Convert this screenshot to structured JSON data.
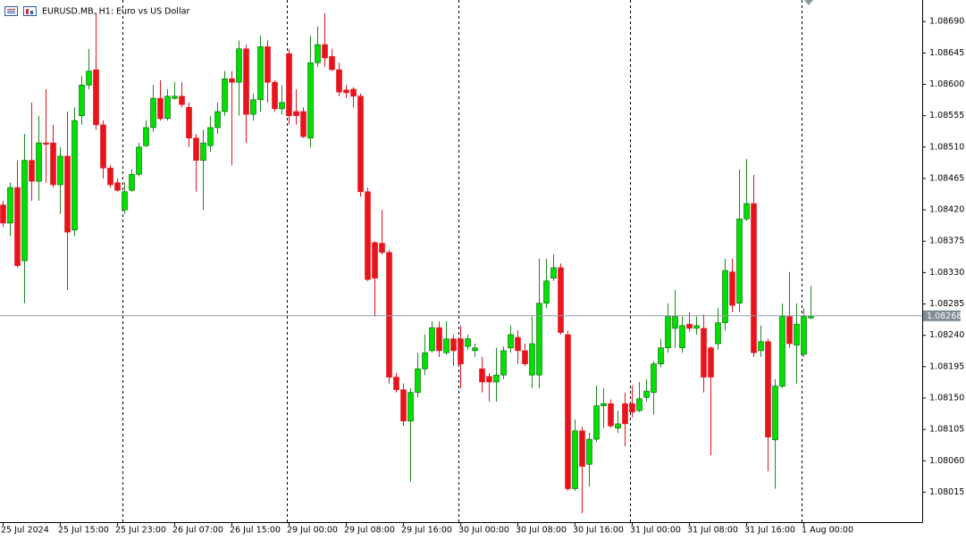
{
  "chart_data": {
    "type": "candlestick",
    "title": "EURUSD.MB, H1:  Euro vs US Dollar",
    "up_color": "#00e000",
    "down_color": "#e8131b",
    "current_price": 1.08268,
    "categories": [
      "25 Jul 2024",
      null,
      null,
      null,
      null,
      null,
      null,
      null,
      "25 Jul 15:00",
      null,
      null,
      null,
      null,
      null,
      null,
      null,
      "25 Jul 23:00",
      null,
      null,
      null,
      null,
      null,
      null,
      null,
      "26 Jul 07:00",
      null,
      null,
      null,
      null,
      null,
      null,
      null,
      "26 Jul 15:00",
      null,
      null,
      null,
      null,
      null,
      null,
      null,
      "29 Jul 00:00",
      null,
      null,
      null,
      null,
      null,
      null,
      null,
      "29 Jul 08:00",
      null,
      null,
      null,
      null,
      null,
      null,
      null,
      "29 Jul 16:00",
      null,
      null,
      null,
      null,
      null,
      null,
      null,
      "30 Jul 00:00",
      null,
      null,
      null,
      null,
      null,
      null,
      null,
      "30 Jul 08:00",
      null,
      null,
      null,
      null,
      null,
      null,
      null,
      "30 Jul 16:00",
      null,
      null,
      null,
      null,
      null,
      null,
      null,
      "31 Jul 00:00",
      null,
      null,
      null,
      null,
      null,
      null,
      null,
      "31 Jul 08:00",
      null,
      null,
      null,
      null,
      null,
      null,
      null,
      "31 Jul 16:00",
      null,
      null,
      null,
      null,
      null,
      null,
      null,
      "1 Aug 00:00",
      null
    ],
    "open": [
      1.08427,
      1.08401,
      1.08452,
      1.08347,
      1.08491,
      1.08461,
      1.08516,
      1.08516,
      1.08456,
      1.08497,
      1.08391,
      1.08555,
      1.08599,
      1.08621,
      1.08542,
      1.0848,
      1.08459,
      1.0842,
      1.08448,
      1.08471,
      1.08512,
      1.08538,
      1.0858,
      1.08551,
      1.0858,
      1.08583,
      1.08567,
      1.08523,
      1.08491,
      1.08512,
      1.08538,
      1.08561,
      1.08608,
      1.08603,
      1.08651,
      1.08557,
      1.08578,
      1.08654,
      1.08603,
      1.08565,
      1.08644,
      1.08561,
      1.08561,
      1.08523,
      1.08631,
      1.08657,
      1.0864,
      1.08621,
      1.08592,
      1.08593,
      1.08583,
      1.08446,
      1.08373,
      1.08372,
      1.08359,
      1.0818,
      1.08162,
      1.08117,
      1.08158,
      1.08192,
      1.08218,
      1.08251,
      1.08215,
      1.08235,
      1.08235,
      1.08224,
      1.08218,
      1.08192,
      1.08181,
      1.08173,
      1.08183,
      1.08222,
      1.08237,
      1.08218,
      1.08183,
      1.08183,
      1.08286,
      1.08322,
      1.08337,
      1.08241,
      1.0802,
      1.08103,
      1.08055,
      1.08091,
      1.08139,
      1.08142,
      1.08107,
      1.08142,
      1.08142,
      1.08132,
      1.08151,
      1.08158,
      1.08199,
      1.08222,
      1.0825,
      1.08222,
      1.08256,
      1.0825,
      1.0825,
      1.08222,
      1.08228,
      1.08258,
      1.08331,
      1.08286,
      1.08407,
      1.08429,
      1.08218,
      1.08231,
      1.0809,
      1.08167,
      1.08267,
      1.08226,
      1.08213,
      1.08265
    ],
    "high": [
      1.08433,
      1.08459,
      1.08491,
      1.08529,
      1.08574,
      1.08555,
      1.08593,
      1.08542,
      1.0851,
      1.08561,
      1.08567,
      1.08612,
      1.08651,
      1.08702,
      1.08548,
      1.08484,
      1.08465,
      1.08459,
      1.08478,
      1.08516,
      1.08548,
      1.08599,
      1.08606,
      1.08593,
      1.08603,
      1.08603,
      1.08574,
      1.08529,
      1.08535,
      1.08555,
      1.08574,
      1.08619,
      1.08619,
      1.08663,
      1.08657,
      1.08587,
      1.0867,
      1.08663,
      1.08606,
      1.08599,
      1.08651,
      1.08593,
      1.08567,
      1.0867,
      1.08683,
      1.08702,
      1.08651,
      1.08631,
      1.08599,
      1.08596,
      1.08587,
      1.08452,
      1.08375,
      1.0842,
      1.08363,
      1.08186,
      1.08171,
      1.08164,
      1.08215,
      1.08241,
      1.0826,
      1.0826,
      1.0826,
      1.08241,
      1.08254,
      1.08241,
      1.08228,
      1.08209,
      1.08186,
      1.08222,
      1.08224,
      1.08254,
      1.08247,
      1.08228,
      1.08267,
      1.0835,
      1.0835,
      1.08356,
      1.08343,
      1.08247,
      1.08119,
      1.08109,
      1.081,
      1.08168,
      1.08164,
      1.08148,
      1.08132,
      1.08158,
      1.08168,
      1.08173,
      1.08177,
      1.08203,
      1.08235,
      1.08286,
      1.08305,
      1.08267,
      1.08273,
      1.08267,
      1.0827,
      1.08224,
      1.08279,
      1.0835,
      1.0835,
      1.08478,
      1.08493,
      1.0847,
      1.08254,
      1.08235,
      1.08177,
      1.08286,
      1.08331,
      1.08286,
      1.08279,
      1.08311
    ],
    "low": [
      1.08395,
      1.08382,
      1.08337,
      1.08286,
      1.08433,
      1.08433,
      1.08459,
      1.08452,
      1.08414,
      1.08305,
      1.08382,
      1.08542,
      1.08593,
      1.08535,
      1.08465,
      1.08452,
      1.08446,
      1.08414,
      1.08446,
      1.08468,
      1.0851,
      1.08532,
      1.08548,
      1.08548,
      1.08578,
      1.08567,
      1.0851,
      1.08446,
      1.0842,
      1.08503,
      1.08529,
      1.08555,
      1.08484,
      1.08555,
      1.08516,
      1.08548,
      1.08561,
      1.08574,
      1.08561,
      1.08557,
      1.08542,
      1.08542,
      1.08523,
      1.0851,
      1.08625,
      1.08625,
      1.08619,
      1.08583,
      1.0858,
      1.08567,
      1.08439,
      1.08318,
      1.08267,
      1.08356,
      1.08171,
      1.08158,
      1.0811,
      1.0803,
      1.08151,
      1.08183,
      1.08215,
      1.08209,
      1.08212,
      1.08196,
      1.08164,
      1.08219,
      1.08209,
      1.08158,
      1.08145,
      1.08145,
      1.08177,
      1.08215,
      1.08199,
      1.08196,
      1.08164,
      1.08164,
      1.08279,
      1.08318,
      1.08241,
      1.08017,
      1.08017,
      1.07985,
      1.08023,
      1.08087,
      1.08107,
      1.08107,
      1.081,
      1.08081,
      1.08122,
      1.0813,
      1.08145,
      1.08126,
      1.08194,
      1.08215,
      1.08222,
      1.08215,
      1.08245,
      1.08241,
      1.08158,
      1.08068,
      1.08219,
      1.08247,
      1.08273,
      1.08273,
      1.08404,
      1.08209,
      1.08209,
      1.08045,
      1.0802,
      1.08164,
      1.08222,
      1.08171,
      1.08209,
      1.08263
    ],
    "close": [
      1.08401,
      1.08452,
      1.0834,
      1.08491,
      1.08461,
      1.08516,
      1.08514,
      1.08456,
      1.08497,
      1.08388,
      1.08548,
      1.08599,
      1.08619,
      1.08542,
      1.0848,
      1.08456,
      1.08448,
      1.08446,
      1.08471,
      1.0851,
      1.08538,
      1.0858,
      1.08551,
      1.08583,
      1.08583,
      1.08571,
      1.08523,
      1.08491,
      1.08516,
      1.08538,
      1.08561,
      1.08608,
      1.08603,
      1.08651,
      1.08557,
      1.08578,
      1.08654,
      1.08603,
      1.08565,
      1.08574,
      1.08555,
      1.08555,
      1.08525,
      1.08631,
      1.08657,
      1.08638,
      1.08621,
      1.08589,
      1.08588,
      1.08583,
      1.08446,
      1.0832,
      1.08322,
      1.08359,
      1.0818,
      1.08162,
      1.08117,
      1.08158,
      1.08192,
      1.08215,
      1.08251,
      1.08218,
      1.08235,
      1.08218,
      1.08199,
      1.08235,
      1.08222,
      1.08173,
      1.08173,
      1.08183,
      1.08218,
      1.08241,
      1.08218,
      1.08199,
      1.08228,
      1.08286,
      1.08318,
      1.08337,
      1.08244,
      1.0802,
      1.08103,
      1.08052,
      1.08091,
      1.08139,
      1.08142,
      1.0811,
      1.08113,
      1.08113,
      1.0813,
      1.08149,
      1.0816,
      1.08199,
      1.08222,
      1.08267,
      1.08267,
      1.08254,
      1.0825,
      1.08254,
      1.0818,
      1.0818,
      1.08258,
      1.08333,
      1.08283,
      1.08407,
      1.08429,
      1.08215,
      1.08231,
      1.08094,
      1.08167,
      1.08267,
      1.08228,
      1.08256,
      1.08267,
      1.08268
    ],
    "ylim": [
      1.07972,
      1.08721
    ],
    "yticks": [
      1.08015,
      {
        "value": 1.0806,
        "label": "1.08060"
      },
      1.08105,
      {
        "value": 1.0815,
        "label": "1.08150"
      },
      1.08195,
      {
        "value": 1.0824,
        "label": "1.08240"
      },
      1.08285,
      {
        "value": 1.0833,
        "label": "1.08330"
      },
      1.08375,
      {
        "value": 1.0842,
        "label": "1.08420"
      },
      1.08465,
      {
        "value": 1.0851,
        "label": "1.08510"
      },
      1.08555,
      {
        "value": 1.086,
        "label": "1.08600"
      },
      1.08645,
      {
        "value": 1.0869,
        "label": "1.08690"
      }
    ]
  }
}
